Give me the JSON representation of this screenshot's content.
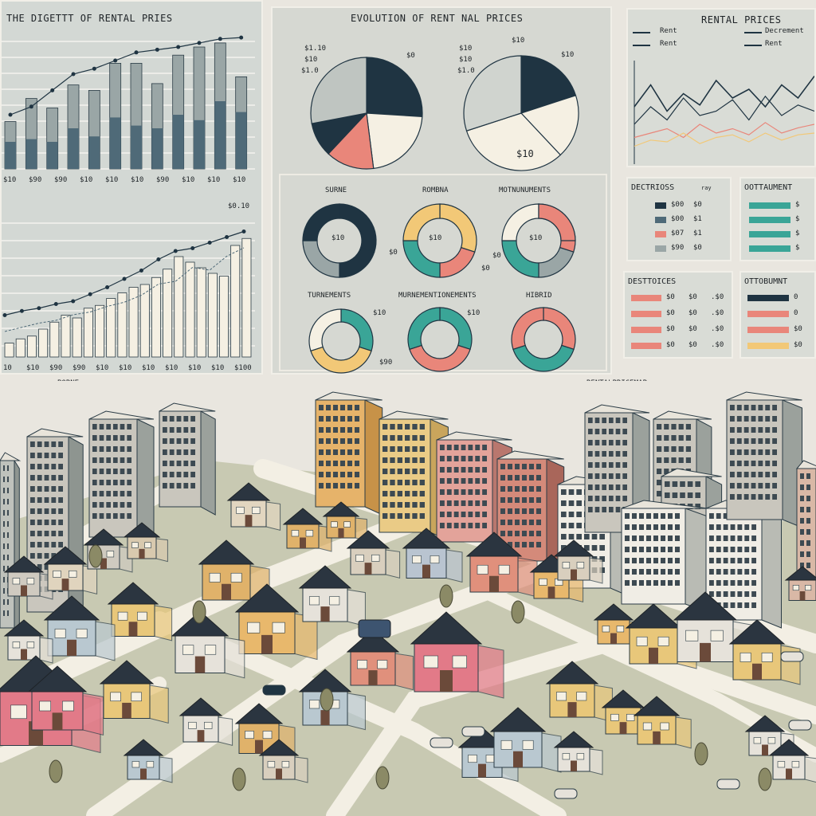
{
  "colors": {
    "panel_bg": "#d9dcd6",
    "navy": "#1f3442",
    "slate": "#4f6a78",
    "gray": "#9aa6a6",
    "cream": "#f5f0e3",
    "teal": "#3aa597",
    "salmon": "#e9867a",
    "yellow": "#f2c877",
    "road": "#f3efe4",
    "grass": "#c8c9b2"
  },
  "top_left": {
    "title": "THE DIGETTT OF RENTAL PRIES",
    "upper_chart": {
      "x_ticks": [
        "$10",
        "$90",
        "$90",
        "$10",
        "$10",
        "$10",
        "$90",
        "$10",
        "$10",
        "$10"
      ],
      "bars_total": [
        0.35,
        0.52,
        0.45,
        0.62,
        0.58,
        0.78,
        0.78,
        0.63,
        0.84,
        0.9,
        0.93,
        0.68
      ],
      "bars_base": [
        0.2,
        0.22,
        0.2,
        0.3,
        0.24,
        0.38,
        0.32,
        0.3,
        0.4,
        0.36,
        0.5,
        0.42
      ],
      "trend": [
        0.4,
        0.46,
        0.58,
        0.7,
        0.74,
        0.8,
        0.86,
        0.88,
        0.9,
        0.93,
        0.96,
        0.97
      ]
    },
    "lower_chart": {
      "top_label": "$0.10",
      "x_ticks": [
        "10",
        "$10",
        "$90",
        "$90",
        "$10",
        "$10",
        "$10",
        "$10",
        "$10",
        "$10",
        "$100"
      ],
      "bars": [
        0.1,
        0.13,
        0.15,
        0.2,
        0.25,
        0.3,
        0.28,
        0.35,
        0.37,
        0.42,
        0.46,
        0.5,
        0.52,
        0.57,
        0.63,
        0.72,
        0.68,
        0.64,
        0.6,
        0.58,
        0.8,
        0.85
      ],
      "trend1": [
        0.3,
        0.33,
        0.35,
        0.38,
        0.4,
        0.45,
        0.5,
        0.56,
        0.62,
        0.7,
        0.76,
        0.78,
        0.82,
        0.86,
        0.9
      ],
      "trend2": [
        0.24,
        0.27,
        0.3,
        0.32,
        0.36,
        0.38,
        0.42,
        0.45,
        0.5,
        0.58,
        0.6,
        0.7,
        0.68,
        0.78,
        0.84
      ]
    }
  },
  "top_middle": {
    "title": "EVOLUTION OF RENT NAL PRICES",
    "pie1": {
      "labels": [
        "$1.10",
        "$10",
        "$1.0"
      ],
      "right_label": "$0",
      "slices": [
        0.26,
        0.22,
        0.14,
        0.1,
        0.28
      ]
    },
    "pie2": {
      "labels": [
        "$10",
        "$10",
        "$1.0"
      ],
      "top_label": "$10",
      "right_label": "$10",
      "center_label": "$10",
      "slices": [
        0.2,
        0.18,
        0.32,
        0.3
      ]
    },
    "donuts_row1": [
      {
        "title": "SURNE",
        "center": "$10",
        "side": "$0"
      },
      {
        "title": "ROMBNA",
        "center": "$10",
        "side": "$0"
      },
      {
        "title": "MOTNUNUMENTS",
        "center": "$10",
        "side": "$0"
      }
    ],
    "donuts_row2": [
      {
        "title": "TURNEMENTS",
        "side": "$10"
      },
      {
        "title": "MURNEMENTIONEMENTS",
        "side": "$10"
      },
      {
        "title": "HIBRID",
        "side": ""
      }
    ],
    "footer": "$90"
  },
  "top_right": {
    "title": "RENTAL PRICES",
    "legend": [
      "Rent",
      "Rent",
      "Decrement",
      "Rent"
    ],
    "line_chart": {
      "s1": [
        0.6,
        0.85,
        0.55,
        0.75,
        0.62,
        0.9,
        0.7,
        0.8,
        0.6,
        0.85,
        0.7,
        0.95
      ],
      "s2": [
        0.4,
        0.6,
        0.45,
        0.7,
        0.5,
        0.55,
        0.68,
        0.45,
        0.72,
        0.5,
        0.62,
        0.55
      ],
      "s3": [
        0.25,
        0.3,
        0.35,
        0.25,
        0.4,
        0.3,
        0.35,
        0.28,
        0.42,
        0.3,
        0.36,
        0.4
      ],
      "s4": [
        0.15,
        0.22,
        0.2,
        0.3,
        0.18,
        0.25,
        0.28,
        0.2,
        0.3,
        0.22,
        0.28,
        0.3
      ]
    },
    "table1": {
      "title": "DECTRIOSS",
      "note": "ray",
      "rows": [
        [
          "$00",
          "$0"
        ],
        [
          "$00",
          "$1"
        ],
        [
          "$07",
          "$1"
        ],
        [
          "$90",
          "$0"
        ]
      ]
    },
    "table2": {
      "title": "OOTTAUMENT",
      "rows": [
        "$",
        "$",
        "$",
        "$"
      ]
    },
    "table3": {
      "title": "DESTTOICES",
      "rows": [
        [
          "$0",
          "$0",
          ".$0"
        ],
        [
          "$0",
          "$0",
          ".$0"
        ],
        [
          "$0",
          "$0",
          ".$0"
        ],
        [
          "$0",
          "$0",
          ".$0"
        ]
      ]
    },
    "table4": {
      "title": "OTTOBUMNT",
      "rows": [
        [
          "0",
          "7"
        ],
        [
          "0",
          "7"
        ],
        [
          "$0",
          "$"
        ],
        [
          "$0",
          "$"
        ]
      ]
    }
  },
  "city": {
    "label_left": "BORNE",
    "label_right": "RENTALPRICEMAP",
    "sign": "$ $ $ $ $"
  }
}
